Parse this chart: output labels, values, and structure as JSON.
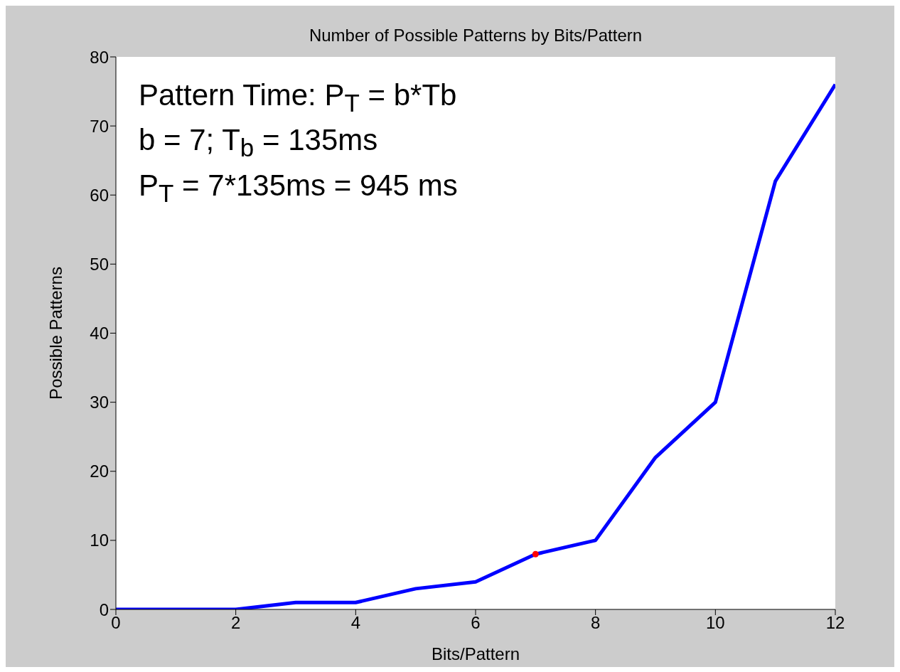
{
  "chart_data": {
    "type": "line",
    "title": "Number of Possible Patterns by Bits/Pattern",
    "xlabel": "Bits/Pattern",
    "ylabel": "Possible Patterns",
    "annotations": [
      "Pattern Time: P$_{T}$ = b*Tb",
      "b = 7; T$_{b}$ = 135ms",
      "P$_{T}$ = 7*135ms = 945 ms"
    ],
    "x": [
      0,
      1,
      2,
      3,
      4,
      5,
      6,
      7,
      8,
      9,
      10,
      11,
      12
    ],
    "series": [
      {
        "color": "#0000ff",
        "marker": "none",
        "values": [
          0,
          0,
          0,
          1,
          1,
          3,
          4,
          8,
          10,
          22,
          30,
          62,
          76
        ]
      },
      {
        "type": "scatter",
        "color": "#ff0000",
        "marker": "circle",
        "x": [
          7
        ],
        "values": [
          8
        ]
      }
    ],
    "xlim": [
      0,
      12
    ],
    "xticks": [
      0,
      2,
      4,
      6,
      8,
      10,
      12
    ],
    "ylim": [
      0,
      80
    ],
    "yticks": [
      0,
      10,
      20,
      30,
      40,
      50,
      60,
      70,
      80
    ],
    "grid": false
  }
}
